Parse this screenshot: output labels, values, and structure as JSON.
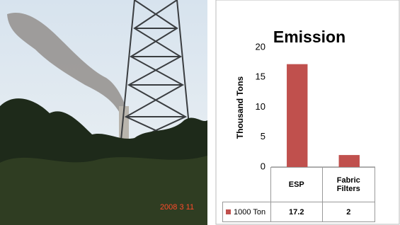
{
  "photo": {
    "timestamp": "2008 3 11"
  },
  "chart_data": {
    "type": "bar",
    "title": "Emission",
    "y_label": "Thousand Tons",
    "categories": [
      "ESP",
      "Fabric Filters"
    ],
    "series": [
      {
        "name": "1000 Ton",
        "color": "#c0504d",
        "values": [
          17.2,
          2
        ]
      }
    ],
    "ylim": [
      0,
      20
    ],
    "yticks": [
      0,
      5,
      10,
      15,
      20
    ],
    "grid": false,
    "data_table": true
  }
}
